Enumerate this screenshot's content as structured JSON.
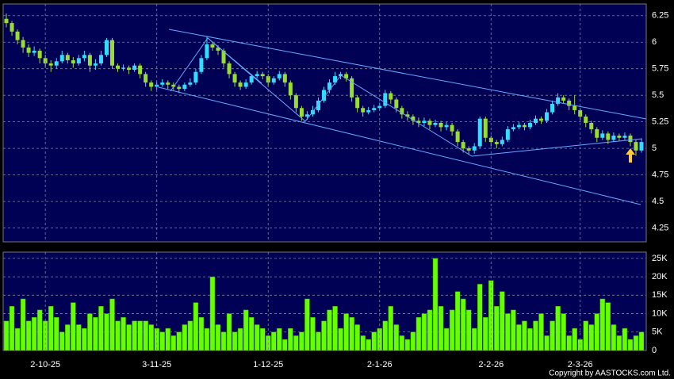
{
  "chart_data": [
    {
      "type": "candlestick",
      "up_color": "#33ddff",
      "down_color": "#99dd33",
      "grid": true,
      "ylim": [
        4.12,
        6.36
      ],
      "yticks": [
        4.25,
        4.5,
        4.75,
        5,
        5.25,
        5.5,
        5.75,
        6,
        6.25
      ],
      "open": [
        6.22,
        6.18,
        6.1,
        6.02,
        5.95,
        5.9,
        5.92,
        5.85,
        5.8,
        5.78,
        5.82,
        5.88,
        5.83,
        5.8,
        5.85,
        5.88,
        5.78,
        5.8,
        5.88,
        6.02,
        5.78,
        5.75,
        5.76,
        5.74,
        5.78,
        5.7,
        5.62,
        5.58,
        5.6,
        5.62,
        5.6,
        5.58,
        5.56,
        5.6,
        5.62,
        5.72,
        5.85,
        5.98,
        5.95,
        5.92,
        5.8,
        5.7,
        5.62,
        5.58,
        5.62,
        5.68,
        5.7,
        5.68,
        5.62,
        5.66,
        5.7,
        5.62,
        5.5,
        5.38,
        5.3,
        5.32,
        5.36,
        5.45,
        5.55,
        5.62,
        5.68,
        5.7,
        5.66,
        5.48,
        5.38,
        5.34,
        5.36,
        5.38,
        5.4,
        5.52,
        5.46,
        5.38,
        5.32,
        5.3,
        5.26,
        5.24,
        5.26,
        5.22,
        5.24,
        5.2,
        5.22,
        5.16,
        5.06,
        5.0,
        4.98,
        5.02,
        5.28,
        5.1,
        5.06,
        5.04,
        5.08,
        5.18,
        5.2,
        5.22,
        5.2,
        5.24,
        5.28,
        5.26,
        5.34,
        5.42,
        5.48,
        5.45,
        5.4,
        5.36,
        5.3,
        5.24,
        5.18,
        5.1,
        5.14,
        5.08,
        5.12,
        5.1,
        5.12,
        5.06,
        4.98
      ],
      "high": [
        6.27,
        6.2,
        6.12,
        6.05,
        5.98,
        5.96,
        5.94,
        5.88,
        5.83,
        5.85,
        5.92,
        5.9,
        5.86,
        5.88,
        5.92,
        5.9,
        5.84,
        5.92,
        6.04,
        6.04,
        5.8,
        5.79,
        5.78,
        5.8,
        5.8,
        5.72,
        5.64,
        5.63,
        5.65,
        5.64,
        5.62,
        5.6,
        5.62,
        5.66,
        5.75,
        5.88,
        6.05,
        6.0,
        5.97,
        5.94,
        5.82,
        5.72,
        5.64,
        5.65,
        5.7,
        5.73,
        5.72,
        5.7,
        5.68,
        5.73,
        5.72,
        5.64,
        5.52,
        5.4,
        5.35,
        5.4,
        5.48,
        5.58,
        5.65,
        5.72,
        5.72,
        5.72,
        5.68,
        5.5,
        5.4,
        5.39,
        5.41,
        5.43,
        5.55,
        5.54,
        5.48,
        5.4,
        5.35,
        5.32,
        5.29,
        5.29,
        5.28,
        5.27,
        5.26,
        5.25,
        5.24,
        5.18,
        5.08,
        5.02,
        5.05,
        5.3,
        5.3,
        5.12,
        5.08,
        5.11,
        5.21,
        5.23,
        5.25,
        5.24,
        5.27,
        5.31,
        5.3,
        5.37,
        5.45,
        5.52,
        5.5,
        5.47,
        5.5,
        5.38,
        5.32,
        5.26,
        5.2,
        5.17,
        5.16,
        5.15,
        5.14,
        5.15,
        5.14,
        5.08,
        5.09
      ],
      "low": [
        6.14,
        6.06,
        5.98,
        5.9,
        5.86,
        5.87,
        5.8,
        5.76,
        5.72,
        5.75,
        5.8,
        5.8,
        5.76,
        5.78,
        5.82,
        5.72,
        5.74,
        5.78,
        5.86,
        5.75,
        5.72,
        5.73,
        5.7,
        5.72,
        5.66,
        5.58,
        5.54,
        5.55,
        5.58,
        5.56,
        5.55,
        5.52,
        5.54,
        5.58,
        5.6,
        5.7,
        5.83,
        5.92,
        5.88,
        5.76,
        5.66,
        5.58,
        5.55,
        5.56,
        5.6,
        5.66,
        5.65,
        5.58,
        5.6,
        5.64,
        5.58,
        5.46,
        5.34,
        5.26,
        5.27,
        5.3,
        5.34,
        5.43,
        5.52,
        5.6,
        5.65,
        5.63,
        5.44,
        5.34,
        5.3,
        5.32,
        5.34,
        5.36,
        5.38,
        5.42,
        5.34,
        5.28,
        5.26,
        5.22,
        5.2,
        5.21,
        5.18,
        5.2,
        5.16,
        5.17,
        5.12,
        5.02,
        4.96,
        4.94,
        4.95,
        5.0,
        5.06,
        5.02,
        5.0,
        5.02,
        5.06,
        5.16,
        5.18,
        5.17,
        5.18,
        5.22,
        5.23,
        5.24,
        5.32,
        5.4,
        5.42,
        5.36,
        5.32,
        5.26,
        5.2,
        5.14,
        5.06,
        5.08,
        5.04,
        5.06,
        5.07,
        5.08,
        5.02,
        4.93,
        4.96
      ],
      "close": [
        6.18,
        6.1,
        6.02,
        5.95,
        5.9,
        5.92,
        5.85,
        5.8,
        5.78,
        5.82,
        5.88,
        5.83,
        5.8,
        5.85,
        5.88,
        5.78,
        5.8,
        5.88,
        6.02,
        5.78,
        5.75,
        5.76,
        5.74,
        5.78,
        5.7,
        5.62,
        5.58,
        5.6,
        5.62,
        5.6,
        5.58,
        5.56,
        5.6,
        5.62,
        5.72,
        5.85,
        5.98,
        5.95,
        5.92,
        5.8,
        5.7,
        5.62,
        5.58,
        5.62,
        5.68,
        5.7,
        5.68,
        5.62,
        5.66,
        5.7,
        5.62,
        5.5,
        5.38,
        5.3,
        5.32,
        5.36,
        5.45,
        5.55,
        5.62,
        5.68,
        5.7,
        5.66,
        5.48,
        5.38,
        5.34,
        5.36,
        5.38,
        5.4,
        5.52,
        5.46,
        5.38,
        5.32,
        5.3,
        5.26,
        5.24,
        5.26,
        5.22,
        5.24,
        5.2,
        5.22,
        5.16,
        5.06,
        5.0,
        4.98,
        5.02,
        5.28,
        5.1,
        5.06,
        5.04,
        5.08,
        5.18,
        5.2,
        5.22,
        5.2,
        5.24,
        5.28,
        5.26,
        5.34,
        5.42,
        5.48,
        5.45,
        5.4,
        5.36,
        5.3,
        5.24,
        5.18,
        5.1,
        5.14,
        5.08,
        5.12,
        5.1,
        5.12,
        5.06,
        4.98,
        5.06
      ]
    },
    {
      "type": "bar",
      "color": "#66ff00",
      "grid": true,
      "categories": [
        null,
        null,
        null,
        null,
        null,
        null,
        null,
        "2-10-25",
        null,
        null,
        null,
        null,
        null,
        null,
        null,
        null,
        null,
        null,
        null,
        null,
        null,
        null,
        null,
        null,
        null,
        null,
        null,
        "3-11-25",
        null,
        null,
        null,
        null,
        null,
        null,
        null,
        null,
        null,
        null,
        null,
        null,
        null,
        null,
        null,
        null,
        null,
        null,
        null,
        "1-12-25",
        null,
        null,
        null,
        null,
        null,
        null,
        null,
        null,
        null,
        null,
        null,
        null,
        null,
        null,
        null,
        null,
        null,
        null,
        null,
        "2-1-26",
        null,
        null,
        null,
        null,
        null,
        null,
        null,
        null,
        null,
        null,
        null,
        null,
        null,
        null,
        null,
        null,
        null,
        null,
        null,
        "2-2-26",
        null,
        null,
        null,
        null,
        null,
        null,
        null,
        null,
        null,
        null,
        null,
        null,
        null,
        null,
        null,
        "2-3-26",
        null,
        null,
        null,
        null,
        null,
        null,
        null,
        null,
        null,
        null,
        null
      ],
      "values": [
        8000,
        12000,
        6000,
        14000,
        8000,
        9000,
        11000,
        8000,
        12000,
        9000,
        5000,
        7000,
        13000,
        7000,
        6000,
        10000,
        9000,
        12000,
        10000,
        14000,
        8000,
        9000,
        7000,
        8000,
        8000,
        8000,
        7000,
        6000,
        5000,
        6000,
        4000,
        5000,
        7000,
        8000,
        13000,
        9000,
        6000,
        20000,
        7000,
        5000,
        10000,
        5000,
        6000,
        11000,
        9000,
        7000,
        6000,
        4000,
        5000,
        6000,
        3000,
        6000,
        4000,
        5000,
        14000,
        9000,
        5000,
        8000,
        11000,
        12000,
        6000,
        10000,
        9000,
        7000,
        4000,
        3000,
        5000,
        6000,
        8000,
        12000,
        7000,
        4000,
        3000,
        5000,
        9000,
        10000,
        11000,
        25000,
        12000,
        6000,
        11000,
        16000,
        14000,
        11000,
        6000,
        18000,
        9000,
        19000,
        12000,
        16000,
        10000,
        11000,
        7000,
        8000,
        6000,
        8000,
        10000,
        4000,
        8000,
        12000,
        10000,
        4000,
        6000,
        3000,
        8000,
        7000,
        10000,
        14000,
        13000,
        7000,
        4000,
        6000,
        3000,
        4000,
        5000
      ],
      "ylim": [
        0,
        26700
      ],
      "yticks": [
        {
          "value": 0,
          "label": "0"
        },
        {
          "value": 5000,
          "label": "5K"
        },
        {
          "value": 10000,
          "label": "10K"
        },
        {
          "value": 15000,
          "label": "15K"
        },
        {
          "value": 20000,
          "label": "20K"
        },
        {
          "value": 25000,
          "label": "25K"
        }
      ]
    }
  ],
  "copyright": "Copyright by AASTOCKS.com Ltd."
}
